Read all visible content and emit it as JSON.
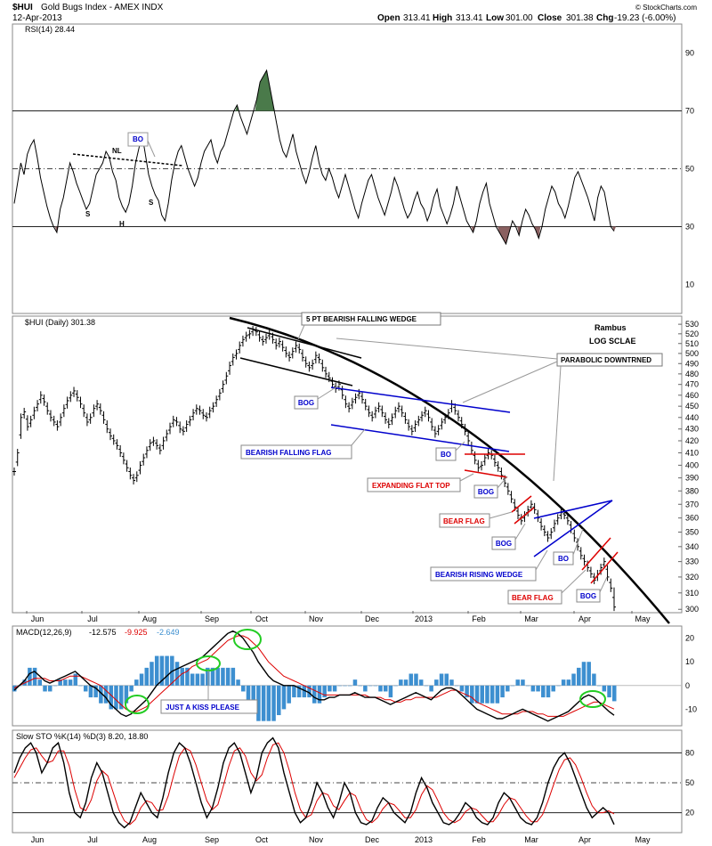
{
  "header": {
    "symbol": "$HUI",
    "name": "Gold Bugs Index - AMEX INDX",
    "date": "12-Apr-2013",
    "open_label": "Open",
    "open": "313.41",
    "high_label": "High",
    "high": "313.41",
    "low_label": "Low",
    "low": "301.00",
    "close_label": "Close",
    "close": "301.38",
    "chg_label": "Chg",
    "chg": "-19.23 (-6.00%)",
    "copyright": "© StockCharts.com"
  },
  "colors": {
    "price": "#000000",
    "blue_lines": "#0000cc",
    "red_lines": "#dd0000",
    "rsi_green": "#4a7a4a",
    "rsi_brown": "#8a6060",
    "macd_hist": "#3d8fd0",
    "signal": "#dd0000",
    "kiss_circle": "#22cc22"
  },
  "chart_data": [
    {
      "type": "line",
      "panel": "rsi",
      "title": "RSI(14) 28.44",
      "ylim": [
        0,
        100
      ],
      "y_ticks": [
        10,
        30,
        50,
        70,
        90
      ],
      "reference_lines": [
        30,
        50,
        70
      ],
      "values": [
        38,
        45,
        52,
        48,
        55,
        58,
        60,
        54,
        47,
        42,
        37,
        33,
        30,
        28,
        36,
        40,
        46,
        52,
        49,
        45,
        42,
        39,
        36,
        38,
        43,
        48,
        50,
        52,
        56,
        54,
        49,
        46,
        40,
        37,
        35,
        38,
        44,
        52,
        57,
        62,
        55,
        48,
        44,
        41,
        39,
        34,
        32,
        38,
        46,
        52,
        56,
        58,
        54,
        50,
        47,
        44,
        47,
        52,
        56,
        58,
        60,
        55,
        52,
        56,
        58,
        62,
        66,
        70,
        72,
        68,
        65,
        62,
        66,
        70,
        74,
        80,
        82,
        84,
        78,
        72,
        66,
        60,
        56,
        54,
        58,
        62,
        56,
        52,
        48,
        45,
        49,
        54,
        58,
        52,
        48,
        46,
        50,
        47,
        43,
        40,
        44,
        48,
        44,
        40,
        36,
        33,
        38,
        42,
        46,
        48,
        44,
        40,
        37,
        34,
        38,
        42,
        47,
        44,
        40,
        36,
        33,
        35,
        39,
        42,
        38,
        36,
        32,
        35,
        40,
        43,
        37,
        34,
        31,
        34,
        38,
        44,
        40,
        36,
        32,
        30,
        28,
        32,
        38,
        42,
        45,
        38,
        34,
        30,
        28,
        26,
        24,
        28,
        32,
        30,
        27,
        32,
        36,
        34,
        31,
        29,
        26,
        30,
        36,
        40,
        44,
        42,
        38,
        36,
        33,
        37,
        42,
        47,
        49,
        46,
        43,
        40,
        36,
        32,
        40,
        44,
        42,
        36,
        30,
        28.44
      ],
      "annotations": [
        {
          "text": "NL",
          "kind": "neckline"
        },
        {
          "text": "BO",
          "kind": "box"
        },
        {
          "text": "S"
        },
        {
          "text": "H"
        },
        {
          "text": "S"
        }
      ]
    },
    {
      "type": "ohlc",
      "panel": "price",
      "title": "$HUI (Daily) 301.38",
      "scale": "log",
      "ylim": [
        298,
        532
      ],
      "y_ticks": [
        300,
        310,
        320,
        330,
        340,
        350,
        360,
        370,
        380,
        390,
        400,
        410,
        420,
        430,
        440,
        450,
        460,
        470,
        480,
        490,
        500,
        510,
        520,
        530
      ],
      "x_ticks": [
        "Jun",
        "Jul",
        "Aug",
        "Sep",
        "Oct",
        "Nov",
        "Dec",
        "2013",
        "Feb",
        "Mar",
        "Apr",
        "May"
      ],
      "values": [
        395,
        410,
        440,
        445,
        432,
        438,
        446,
        452,
        460,
        454,
        446,
        440,
        436,
        432,
        440,
        448,
        455,
        460,
        464,
        458,
        452,
        444,
        436,
        440,
        448,
        452,
        446,
        438,
        430,
        424,
        420,
        416,
        410,
        404,
        398,
        392,
        388,
        392,
        400,
        406,
        412,
        418,
        420,
        416,
        412,
        420,
        426,
        432,
        438,
        436,
        430,
        428,
        434,
        438,
        444,
        448,
        446,
        442,
        440,
        446,
        450,
        456,
        462,
        470,
        478,
        488,
        496,
        500,
        508,
        514,
        518,
        520,
        524,
        522,
        516,
        512,
        516,
        520,
        514,
        508,
        512,
        506,
        500,
        496,
        502,
        508,
        504,
        496,
        490,
        486,
        490,
        498,
        494,
        486,
        480,
        476,
        470,
        466,
        470,
        460,
        452,
        448,
        454,
        458,
        462,
        456,
        450,
        444,
        440,
        446,
        450,
        444,
        438,
        434,
        440,
        446,
        450,
        444,
        438,
        432,
        428,
        434,
        438,
        442,
        446,
        440,
        432,
        426,
        430,
        436,
        440,
        444,
        452,
        446,
        440,
        434,
        428,
        420,
        412,
        404,
        398,
        400,
        406,
        410,
        408,
        402,
        398,
        392,
        386,
        380,
        374,
        368,
        362,
        358,
        362,
        366,
        370,
        366,
        360,
        354,
        350,
        346,
        350,
        356,
        360,
        364,
        362,
        358,
        352,
        346,
        340,
        334,
        330,
        326,
        322,
        318,
        322,
        326,
        330,
        320,
        313,
        301.38
      ]
    },
    {
      "type": "line",
      "panel": "macd",
      "title": "MACD(12,26,9)",
      "readout": [
        "-12.575",
        "-9.925",
        "-2.649"
      ],
      "ylim": [
        -17,
        24
      ],
      "y_ticks": [
        -10,
        0,
        10,
        20
      ],
      "series": [
        {
          "name": "MACD",
          "values": [
            -2,
            0,
            2,
            5,
            6,
            4,
            2,
            1,
            2,
            3,
            4,
            5,
            6,
            4,
            2,
            0,
            -1,
            -3,
            -5,
            -8,
            -10,
            -12,
            -13,
            -12,
            -10,
            -8,
            -6,
            -3,
            0,
            2,
            4,
            6,
            7,
            8,
            9,
            10,
            11,
            12,
            14,
            16,
            18,
            20,
            22,
            23,
            22,
            20,
            17,
            14,
            10,
            7,
            4,
            2,
            1,
            0,
            0,
            0,
            -1,
            -2,
            -3,
            -5,
            -6,
            -6,
            -5,
            -5,
            -4,
            -4,
            -4,
            -3,
            -4,
            -5,
            -5,
            -5,
            -6,
            -7,
            -8,
            -7,
            -6,
            -5,
            -4,
            -3,
            -4,
            -5,
            -6,
            -4,
            -2,
            -1,
            -1,
            -2,
            -4,
            -6,
            -8,
            -10,
            -11,
            -12,
            -13,
            -14,
            -14,
            -13,
            -12,
            -11,
            -10,
            -11,
            -12,
            -13,
            -14,
            -15,
            -14,
            -13,
            -12,
            -11,
            -9,
            -7,
            -5,
            -4,
            -5,
            -7,
            -9,
            -11,
            -12.575
          ]
        },
        {
          "name": "Signal",
          "values": [
            -1,
            0,
            1,
            2,
            3,
            3,
            3,
            2,
            2,
            2,
            3,
            4,
            4,
            4,
            3,
            2,
            1,
            0,
            -2,
            -4,
            -6,
            -8,
            -10,
            -11,
            -11,
            -10,
            -9,
            -7,
            -5,
            -3,
            -1,
            1,
            3,
            5,
            6,
            8,
            9,
            10,
            11,
            13,
            15,
            17,
            19,
            20,
            21,
            21,
            20,
            18,
            16,
            13,
            10,
            8,
            6,
            4,
            3,
            2,
            1,
            0,
            -1,
            -2,
            -3,
            -4,
            -4,
            -4,
            -4,
            -4,
            -4,
            -4,
            -4,
            -4,
            -5,
            -5,
            -5,
            -6,
            -6,
            -7,
            -7,
            -6,
            -6,
            -5,
            -5,
            -5,
            -5,
            -5,
            -4,
            -3,
            -2,
            -2,
            -3,
            -4,
            -5,
            -7,
            -8,
            -9,
            -10,
            -11,
            -12,
            -12,
            -12,
            -12,
            -11,
            -11,
            -11,
            -12,
            -12,
            -13,
            -13,
            -13,
            -13,
            -12,
            -11,
            -10,
            -9,
            -8,
            -7,
            -7,
            -8,
            -9,
            -9.925
          ]
        }
      ],
      "annotations": [
        {
          "text": "JUST A KISS PLEASE"
        }
      ]
    },
    {
      "type": "line",
      "panel": "sto",
      "title": "Slow STO %K(14) %D(3) 8.20, 18.80",
      "ylim": [
        0,
        100
      ],
      "y_ticks": [
        20,
        50,
        80
      ],
      "series": [
        {
          "name": "%K",
          "values": [
            60,
            75,
            85,
            90,
            80,
            60,
            70,
            85,
            90,
            70,
            40,
            20,
            15,
            30,
            55,
            70,
            60,
            40,
            20,
            10,
            5,
            10,
            25,
            40,
            30,
            20,
            15,
            35,
            60,
            80,
            90,
            85,
            70,
            50,
            30,
            15,
            25,
            45,
            70,
            85,
            90,
            80,
            60,
            40,
            55,
            80,
            90,
            95,
            85,
            60,
            40,
            20,
            10,
            15,
            30,
            50,
            40,
            25,
            15,
            30,
            50,
            40,
            20,
            10,
            8,
            12,
            25,
            35,
            30,
            20,
            15,
            10,
            20,
            40,
            55,
            45,
            30,
            20,
            10,
            8,
            12,
            20,
            30,
            25,
            15,
            10,
            8,
            15,
            30,
            40,
            35,
            25,
            15,
            10,
            8,
            15,
            30,
            50,
            65,
            75,
            80,
            70,
            55,
            40,
            25,
            15,
            20,
            25,
            20,
            8.2
          ]
        },
        {
          "name": "%D",
          "values": [
            55,
            65,
            75,
            83,
            85,
            77,
            70,
            72,
            82,
            82,
            67,
            43,
            25,
            22,
            33,
            52,
            62,
            57,
            40,
            23,
            12,
            8,
            13,
            25,
            32,
            30,
            22,
            23,
            37,
            58,
            77,
            85,
            82,
            68,
            50,
            32,
            23,
            28,
            47,
            67,
            82,
            85,
            77,
            60,
            52,
            58,
            75,
            88,
            90,
            80,
            62,
            40,
            23,
            15,
            18,
            32,
            40,
            38,
            27,
            23,
            32,
            40,
            37,
            23,
            13,
            10,
            15,
            24,
            30,
            28,
            22,
            15,
            15,
            23,
            38,
            47,
            43,
            32,
            20,
            13,
            10,
            13,
            21,
            25,
            23,
            17,
            11,
            11,
            18,
            28,
            35,
            33,
            25,
            17,
            11,
            11,
            18,
            32,
            48,
            63,
            73,
            75,
            68,
            55,
            40,
            27,
            20,
            20,
            22,
            18.8
          ]
        }
      ]
    }
  ],
  "annotations": {
    "wedge_5pt": "5 PT BEARISH FALLING WEDGE",
    "rambus": "Rambus",
    "log_scale": "LOG SCLAE",
    "parabolic": "PARABOLIC DOWNTRNED",
    "bog1": "BOG",
    "falling_flag": "BEARISH FALLING FLAG",
    "bo1": "BO",
    "expanding": "EXPANDING FLAT TOP",
    "bog2": "BOG",
    "bear_flag1": "BEAR FLAG",
    "bog3": "BOG",
    "bo2": "BO",
    "rising_wedge": "BEARISH RISING WEDGE",
    "bear_flag2": "BEAR FLAG",
    "bog4": "BOG"
  }
}
